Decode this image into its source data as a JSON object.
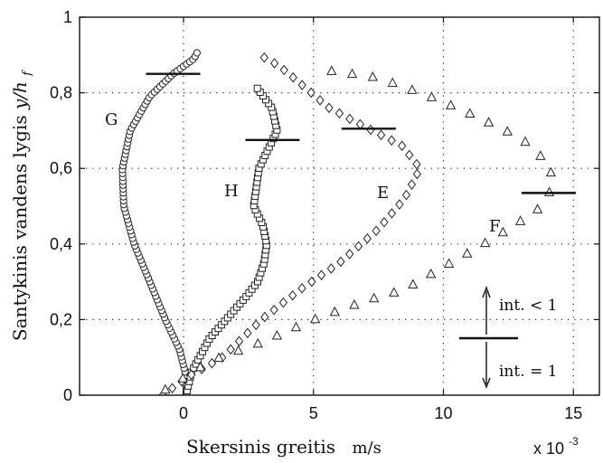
{
  "chart_data": {
    "type": "scatter",
    "xlabel": "Skersinis greitis",
    "xunit": "m/s",
    "ylabel": "Santykinis vandens lygis",
    "ylabel_symbol": "y/h",
    "ylabel_symbol_sub": "f",
    "x_multiplier": "x 10",
    "x_multiplier_exp": "-3",
    "xlim": [
      -4,
      16
    ],
    "ylim": [
      0,
      1
    ],
    "x_ticks": [
      0,
      5,
      10,
      15
    ],
    "y_ticks": [
      0,
      0.2,
      0.4,
      0.6,
      0.8,
      1
    ],
    "x_tick_labels": [
      "0",
      "5",
      "10",
      "15"
    ],
    "y_tick_labels": [
      "0",
      "0,2",
      "0,4",
      "0,6",
      "0,8",
      "1"
    ],
    "grid": true,
    "series": [
      {
        "name": "G",
        "marker": "circle",
        "profile": [
          [
            0.1,
            0.0
          ],
          [
            0.1,
            0.05
          ],
          [
            -0.15,
            0.12
          ],
          [
            -0.7,
            0.2
          ],
          [
            -1.3,
            0.3
          ],
          [
            -1.9,
            0.4
          ],
          [
            -2.3,
            0.5
          ],
          [
            -2.35,
            0.6
          ],
          [
            -2.05,
            0.7
          ],
          [
            -1.3,
            0.79
          ],
          [
            -0.4,
            0.85
          ],
          [
            0.4,
            0.89
          ],
          [
            0.55,
            0.91
          ]
        ],
        "level_marker_y": 0.85
      },
      {
        "name": "H",
        "marker": "square",
        "profile": [
          [
            0.1,
            0.0
          ],
          [
            0.3,
            0.06
          ],
          [
            1.0,
            0.15
          ],
          [
            2.4,
            0.26
          ],
          [
            2.85,
            0.3
          ],
          [
            3.1,
            0.35
          ],
          [
            3.2,
            0.4
          ],
          [
            3.05,
            0.45
          ],
          [
            2.7,
            0.5
          ],
          [
            2.9,
            0.6
          ],
          [
            3.6,
            0.7
          ],
          [
            3.4,
            0.76
          ],
          [
            2.75,
            0.82
          ]
        ],
        "level_marker_y": 0.675
      },
      {
        "name": "E",
        "marker": "diamond",
        "profile": [
          [
            -0.8,
            0.0
          ],
          [
            0.2,
            0.05
          ],
          [
            1.5,
            0.1
          ],
          [
            3.0,
            0.2
          ],
          [
            4.5,
            0.28
          ],
          [
            6.0,
            0.35
          ],
          [
            7.5,
            0.44
          ],
          [
            8.5,
            0.52
          ],
          [
            9.1,
            0.6
          ],
          [
            8.4,
            0.66
          ],
          [
            6.7,
            0.72
          ],
          [
            5.6,
            0.76
          ],
          [
            4.4,
            0.83
          ],
          [
            3.7,
            0.87
          ],
          [
            3.2,
            0.89
          ],
          [
            2.9,
            0.9
          ]
        ],
        "level_marker_y": 0.705
      },
      {
        "name": "F",
        "marker": "triangle",
        "profile": [
          [
            -0.7,
            0.015
          ],
          [
            1.0,
            0.09
          ],
          [
            3.0,
            0.14
          ],
          [
            5.0,
            0.2
          ],
          [
            7.0,
            0.25
          ],
          [
            8.5,
            0.28
          ],
          [
            10.0,
            0.34
          ],
          [
            11.3,
            0.39
          ],
          [
            12.5,
            0.44
          ],
          [
            13.6,
            0.49
          ],
          [
            14.2,
            0.55
          ],
          [
            14.1,
            0.61
          ],
          [
            13.0,
            0.68
          ],
          [
            11.2,
            0.74
          ],
          [
            9.5,
            0.79
          ],
          [
            7.5,
            0.84
          ],
          [
            5.5,
            0.86
          ]
        ],
        "level_marker_y": 0.535
      }
    ],
    "legend": {
      "upper": "int. < 1",
      "lower": "int. = 1",
      "placement": "bottom-right"
    }
  }
}
